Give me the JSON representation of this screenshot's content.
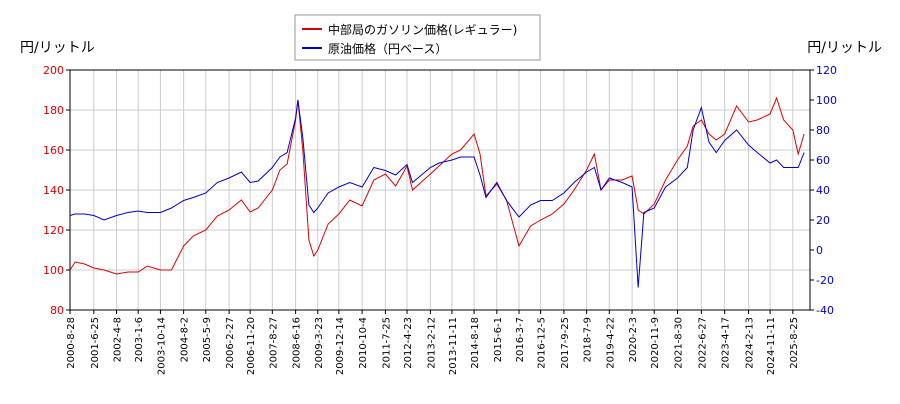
{
  "chart_data": {
    "type": "line",
    "y_label": "円/リットル",
    "y2_label": "円/リットル",
    "x": [
      "2000-8-28",
      "2000-11-1",
      "2001-3-1",
      "2001-6-25",
      "2001-11-1",
      "2002-4-8",
      "2002-9-1",
      "2003-1-6",
      "2003-5-1",
      "2003-10-14",
      "2004-3-1",
      "2004-8-2",
      "2004-12-1",
      "2005-5-9",
      "2005-10-1",
      "2006-2-27",
      "2006-8-1",
      "2006-11-20",
      "2007-3-1",
      "2007-8-27",
      "2007-12-1",
      "2008-3-1",
      "2008-6-16",
      "2008-7-15",
      "2008-9-15",
      "2008-12-1",
      "2009-2-1",
      "2009-3-23",
      "2009-8-1",
      "2009-12-14",
      "2010-5-1",
      "2010-10-4",
      "2011-3-1",
      "2011-7-25",
      "2011-12-1",
      "2012-4-23",
      "2012-7-1",
      "2013-2-12",
      "2013-6-1",
      "2013-11-11",
      "2014-3-1",
      "2014-8-18",
      "2014-11-1",
      "2015-1-15",
      "2015-6-1",
      "2015-10-1",
      "2016-3-7",
      "2016-8-1",
      "2016-12-5",
      "2017-5-1",
      "2017-9-25",
      "2018-2-1",
      "2018-7-9",
      "2018-10-15",
      "2019-1-7",
      "2019-4-22",
      "2019-10-1",
      "2020-2-3",
      "2020-4-20",
      "2020-7-1",
      "2020-11-9",
      "2021-4-1",
      "2021-8-30",
      "2022-1-1",
      "2022-3-15",
      "2022-6-27",
      "2022-10-1",
      "2023-1-1",
      "2023-4-17",
      "2023-9-15",
      "2024-2-13",
      "2024-6-1",
      "2024-11-11",
      "2025-2-1",
      "2025-5-1",
      "2025-8-25",
      "2025-11-1",
      "2026-1-15"
    ],
    "series": [
      {
        "name": "中部局のガソリン価格(レギュラー)",
        "color": "#dd0000",
        "axis": "y",
        "values": [
          100,
          104,
          103,
          101,
          100,
          98,
          99,
          99,
          102,
          100,
          100,
          112,
          117,
          120,
          127,
          130,
          135,
          129,
          131,
          140,
          150,
          153,
          175,
          185,
          160,
          115,
          107,
          110,
          123,
          128,
          135,
          132,
          145,
          148,
          142,
          152,
          140,
          148,
          152,
          158,
          160,
          168,
          158,
          137,
          143,
          135,
          112,
          122,
          125,
          128,
          133,
          140,
          150,
          158,
          140,
          145,
          145,
          147,
          130,
          128,
          133,
          145,
          155,
          162,
          172,
          175,
          168,
          165,
          168,
          182,
          174,
          175,
          178,
          186,
          175,
          170,
          158,
          168
        ]
      },
      {
        "name": "原油価格（円ベース）",
        "color": "#0000cc",
        "axis": "y2",
        "values": [
          23,
          24,
          24,
          23,
          20,
          23,
          25,
          26,
          25,
          25,
          28,
          33,
          35,
          38,
          45,
          48,
          52,
          45,
          46,
          55,
          62,
          65,
          88,
          100,
          75,
          30,
          25,
          28,
          38,
          42,
          45,
          42,
          55,
          53,
          50,
          57,
          45,
          55,
          58,
          60,
          62,
          62,
          50,
          35,
          45,
          33,
          22,
          30,
          33,
          33,
          38,
          45,
          52,
          55,
          40,
          48,
          45,
          42,
          -25,
          25,
          28,
          42,
          48,
          55,
          80,
          95,
          72,
          65,
          73,
          80,
          70,
          65,
          58,
          60,
          55,
          55,
          55,
          65
        ]
      }
    ],
    "xlim": [
      "2000-8-28",
      "2026-3-30"
    ],
    "xticks": [
      "2000-8-28",
      "2001-6-25",
      "2002-4-8",
      "2003-1-6",
      "2003-10-14",
      "2004-8-2",
      "2005-5-9",
      "2006-2-27",
      "2006-11-20",
      "2007-8-27",
      "2008-6-16",
      "2009-3-23",
      "2009-12-14",
      "2010-10-4",
      "2011-7-25",
      "2012-4-23",
      "2013-2-12",
      "2013-11-11",
      "2014-8-18",
      "2015-6-1",
      "2016-3-7",
      "2016-12-5",
      "2017-9-25",
      "2018-7-9",
      "2019-4-22",
      "2020-2-3",
      "2020-11-9",
      "2021-8-30",
      "2022-6-27",
      "2023-4-17",
      "2024-2-13",
      "2024-11-11",
      "2025-8-25"
    ],
    "ylim": [
      80,
      200
    ],
    "yticks": [
      80,
      100,
      120,
      140,
      160,
      180,
      200
    ],
    "y2lim": [
      -40,
      120
    ],
    "y2ticks": [
      -40,
      -20,
      0,
      20,
      40,
      60,
      80,
      100,
      120
    ],
    "grid": true
  }
}
